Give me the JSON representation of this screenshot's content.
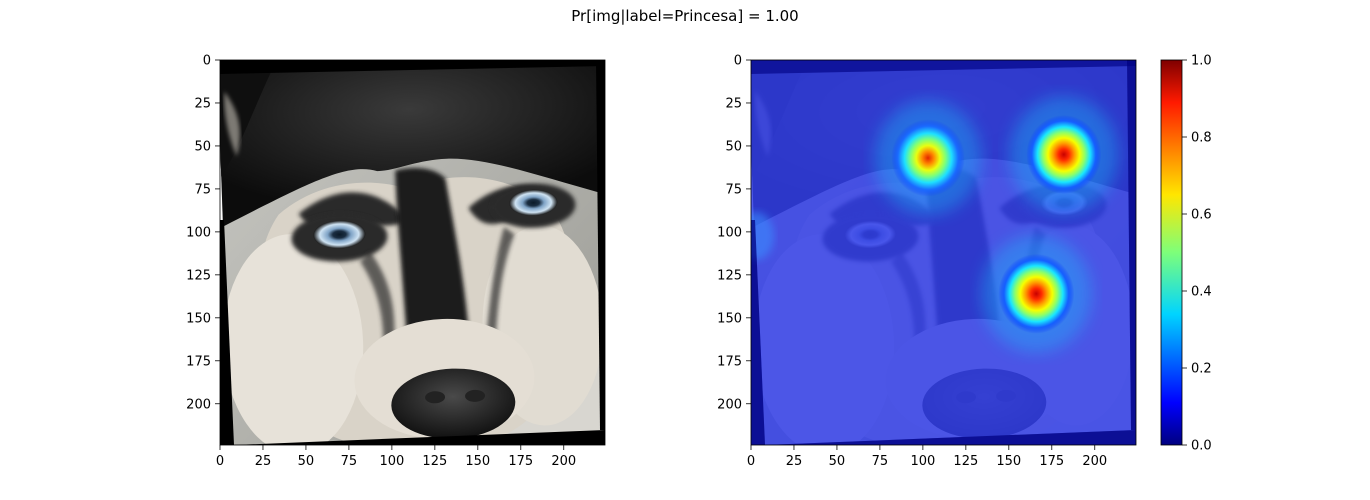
{
  "figure": {
    "title": "Pr[img|label=Princesa] =  1.00"
  },
  "chart_data": [
    {
      "type": "image",
      "name": "input-image",
      "content": "husky dog face photo, slightly rotated",
      "x_ticks": [
        0,
        25,
        50,
        75,
        100,
        125,
        150,
        175,
        200
      ],
      "y_ticks": [
        0,
        25,
        50,
        75,
        100,
        125,
        150,
        175,
        200
      ],
      "xlim": [
        0,
        224
      ],
      "ylim": [
        224,
        0
      ]
    },
    {
      "type": "heatmap",
      "name": "saliency-overlay",
      "colormap": "jet",
      "x_ticks": [
        0,
        25,
        50,
        75,
        100,
        125,
        150,
        175,
        200
      ],
      "y_ticks": [
        0,
        25,
        50,
        75,
        100,
        125,
        150,
        175,
        200
      ],
      "xlim": [
        0,
        224
      ],
      "ylim": [
        224,
        0
      ],
      "hotspots": [
        {
          "x": 103,
          "y": 57,
          "value": 0.85
        },
        {
          "x": 182,
          "y": 55,
          "value": 0.95
        },
        {
          "x": 166,
          "y": 136,
          "value": 1.0
        }
      ],
      "colorbar": {
        "range": [
          0,
          1
        ],
        "ticks": [
          "0.0",
          "0.2",
          "0.4",
          "0.6",
          "0.8",
          "1.0"
        ]
      }
    }
  ]
}
